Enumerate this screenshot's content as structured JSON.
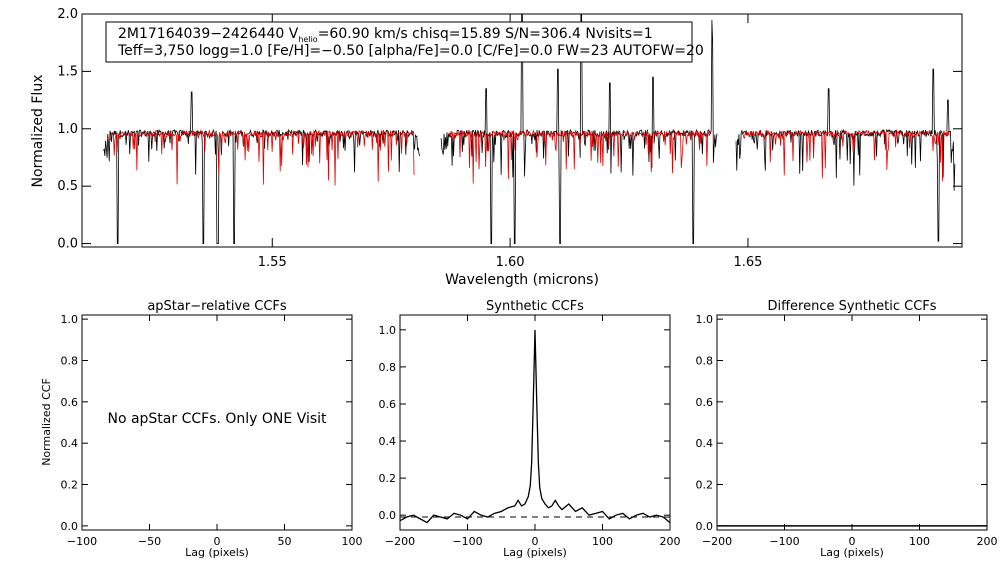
{
  "info_box": {
    "line1_pre": "2M17164039−2426440  V",
    "line1_sub": "helio",
    "line1_post": "=60.90 km/s  chisq=15.89  S/N=306.4  Nvisits=1",
    "line2": "Teff=3,750 logg=1.0 [Fe/H]=−0.50 [alpha/Fe]=0.0 [C/Fe]=0.0 FW=23 AUTOFW=20"
  },
  "note": "No apStar CCFs.  Only ONE Visit",
  "colors": {
    "observed": "#000000",
    "model": "#e00000",
    "axes": "#000000"
  },
  "chart_data": [
    {
      "type": "line",
      "title": "",
      "xlabel": "Wavelength (microns)",
      "ylabel": "Normalized Flux",
      "xlim": [
        1.51,
        1.695
      ],
      "ylim": [
        -0.03,
        2.0
      ],
      "x_ticks": [
        1.55,
        1.6,
        1.65
      ],
      "x_tick_labels": [
        "1.55",
        "1.60",
        "1.65"
      ],
      "y_ticks": [
        0.0,
        0.5,
        1.0,
        1.5,
        2.0
      ],
      "y_tick_labels": [
        "0.0",
        "0.5",
        "1.0",
        "1.5",
        "2.0"
      ],
      "chips": [
        [
          1.5145,
          1.581
        ],
        [
          1.5855,
          1.6435
        ],
        [
          1.6475,
          1.6935
        ]
      ],
      "continuum": 0.96,
      "strong_lines": [
        {
          "x": 1.5175,
          "y": 0.0
        },
        {
          "x": 1.5355,
          "y": 0.0
        },
        {
          "x": 1.5385,
          "y": 0.0
        },
        {
          "x": 1.542,
          "y": 0.0
        },
        {
          "x": 1.596,
          "y": 0.0
        },
        {
          "x": 1.601,
          "y": 0.0
        },
        {
          "x": 1.6105,
          "y": 0.0
        },
        {
          "x": 1.6385,
          "y": 0.0
        },
        {
          "x": 1.69,
          "y": 0.0
        }
      ],
      "emission_spikes": [
        {
          "x": 1.533,
          "y": 1.32
        },
        {
          "x": 1.595,
          "y": 1.35
        },
        {
          "x": 1.6025,
          "y": 2.0
        },
        {
          "x": 1.61,
          "y": 1.52
        },
        {
          "x": 1.615,
          "y": 2.0
        },
        {
          "x": 1.621,
          "y": 1.4
        },
        {
          "x": 1.63,
          "y": 1.45
        },
        {
          "x": 1.6425,
          "y": 2.0
        },
        {
          "x": 1.667,
          "y": 1.35
        },
        {
          "x": 1.689,
          "y": 1.52
        },
        {
          "x": 1.692,
          "y": 1.25
        }
      ],
      "series": [
        {
          "name": "",
          "color": "#000000"
        },
        {
          "name": "",
          "color": "#e00000"
        }
      ]
    },
    {
      "type": "line",
      "title": "apStar−relative CCFs",
      "xlabel": "Lag (pixels)",
      "ylabel": "Normalized CCF",
      "xlim": [
        -100,
        100
      ],
      "ylim": [
        -0.02,
        1.02
      ],
      "x_ticks": [
        -100,
        -50,
        0,
        50,
        100
      ],
      "x_tick_labels": [
        "−100",
        "−50",
        "0",
        "50",
        "100"
      ],
      "y_ticks": [
        0.0,
        0.2,
        0.4,
        0.6,
        0.8,
        1.0
      ],
      "y_tick_labels": [
        "0.0",
        "0.2",
        "0.4",
        "0.6",
        "0.8",
        "1.0"
      ],
      "series": []
    },
    {
      "type": "line",
      "title": "Synthetic CCFs",
      "xlabel": "Lag (pixels)",
      "ylabel": "",
      "xlim": [
        -200,
        200
      ],
      "ylim": [
        -0.08,
        1.08
      ],
      "x_ticks": [
        -200,
        -100,
        0,
        100,
        200
      ],
      "x_tick_labels": [
        "−200",
        "−100",
        "0",
        "100",
        "200"
      ],
      "y_ticks": [
        0.0,
        0.2,
        0.4,
        0.6,
        0.8,
        1.0
      ],
      "y_tick_labels": [
        "0.0",
        "0.2",
        "0.4",
        "0.6",
        "0.8",
        "1.0"
      ],
      "baseline": -0.01,
      "series": [
        {
          "name": "",
          "x": [
            -200,
            -190,
            -180,
            -170,
            -160,
            -150,
            -140,
            -130,
            -120,
            -110,
            -100,
            -90,
            -80,
            -70,
            -60,
            -50,
            -40,
            -30,
            -25,
            -20,
            -15,
            -10,
            -7,
            -5,
            -3,
            -1,
            0,
            1,
            3,
            5,
            7,
            10,
            15,
            20,
            25,
            30,
            35,
            40,
            50,
            60,
            70,
            80,
            90,
            100,
            110,
            120,
            130,
            140,
            150,
            160,
            170,
            180,
            190,
            200
          ],
          "y": [
            -0.03,
            -0.01,
            0.0,
            -0.02,
            -0.04,
            0.0,
            -0.01,
            -0.02,
            0.01,
            0.0,
            -0.02,
            0.02,
            0.0,
            -0.01,
            0.01,
            0.02,
            0.04,
            0.05,
            0.08,
            0.05,
            0.06,
            0.1,
            0.16,
            0.28,
            0.55,
            0.85,
            1.0,
            0.85,
            0.55,
            0.28,
            0.15,
            0.09,
            0.06,
            0.04,
            0.05,
            0.08,
            0.05,
            0.03,
            0.06,
            0.02,
            0.04,
            0.0,
            0.01,
            0.02,
            -0.02,
            0.0,
            0.01,
            -0.02,
            0.0,
            0.01,
            -0.01,
            0.0,
            -0.01,
            -0.04
          ]
        }
      ]
    },
    {
      "type": "line",
      "title": "Difference Synthetic CCFs",
      "xlabel": "Lag (pixels)",
      "ylabel": "",
      "xlim": [
        -200,
        200
      ],
      "ylim": [
        -0.02,
        1.02
      ],
      "x_ticks": [
        -200,
        -100,
        0,
        100,
        200
      ],
      "x_tick_labels": [
        "−200",
        "−100",
        "0",
        "100",
        "200"
      ],
      "y_ticks": [
        0.0,
        0.2,
        0.4,
        0.6,
        0.8,
        1.0
      ],
      "y_tick_labels": [
        "0.0",
        "0.2",
        "0.4",
        "0.6",
        "0.8",
        "1.0"
      ],
      "series": [
        {
          "name": "",
          "x": [
            -200,
            200
          ],
          "y": [
            0.0,
            0.0
          ]
        }
      ]
    }
  ]
}
